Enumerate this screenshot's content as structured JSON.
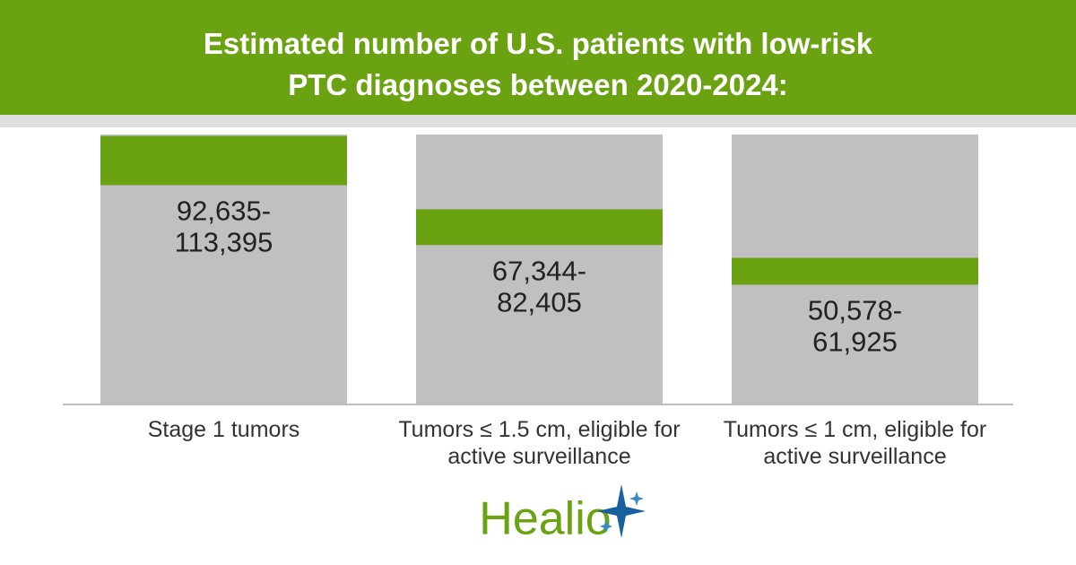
{
  "chart_data": {
    "type": "range_bar",
    "title": "Estimated number of U.S. patients with low-risk PTC diagnoses between 2020-2024:",
    "categories": [
      "Stage 1 tumors",
      "Tumors ≤ 1.5 cm, eligible for active surveillance",
      "Tumors ≤ 1 cm, eligible for active surveillance"
    ],
    "low_values": [
      92635,
      67344,
      50578
    ],
    "high_values": [
      113395,
      82405,
      61925
    ],
    "low_value_labels": [
      "92,635-",
      "67,344-",
      "50,578-"
    ],
    "high_value_labels": [
      "113,395",
      "82,405",
      "61,925"
    ],
    "color": "#6aa212",
    "background_color": "#c0c0c0",
    "ylim": [
      0,
      114000
    ]
  },
  "logo": "Healio"
}
